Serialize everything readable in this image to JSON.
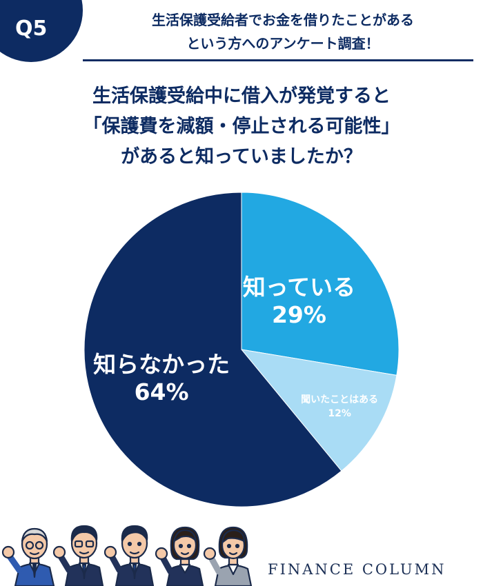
{
  "header": {
    "badge": "Q5",
    "title_lines": [
      "生活保護受給者でお金を借りたことがある",
      "という方へのアンケート調査！"
    ]
  },
  "question": {
    "lines": [
      "生活保護受給中に借入が発覚すると",
      "「保護費を減額・停止される可能性」",
      "があると知っていましたか？"
    ]
  },
  "chart_data": {
    "type": "pie",
    "slices": [
      {
        "label": "知っている",
        "value": 29,
        "display": "29%",
        "color": "#22a8e2"
      },
      {
        "label": "聞いたことはある",
        "value": 12,
        "display": "12%",
        "color": "#a9dcf5"
      },
      {
        "label": "知らなかった",
        "value": 64,
        "display": "64%",
        "color": "#0d2b62"
      }
    ],
    "start": "12 o'clock",
    "direction": "clockwise"
  },
  "footer": {
    "brand": "FINANCE COLUMN",
    "illustration": "five cheering business people"
  },
  "colors": {
    "navy": "#0d2b62",
    "blue": "#22a8e2",
    "light_blue": "#a9dcf5"
  }
}
